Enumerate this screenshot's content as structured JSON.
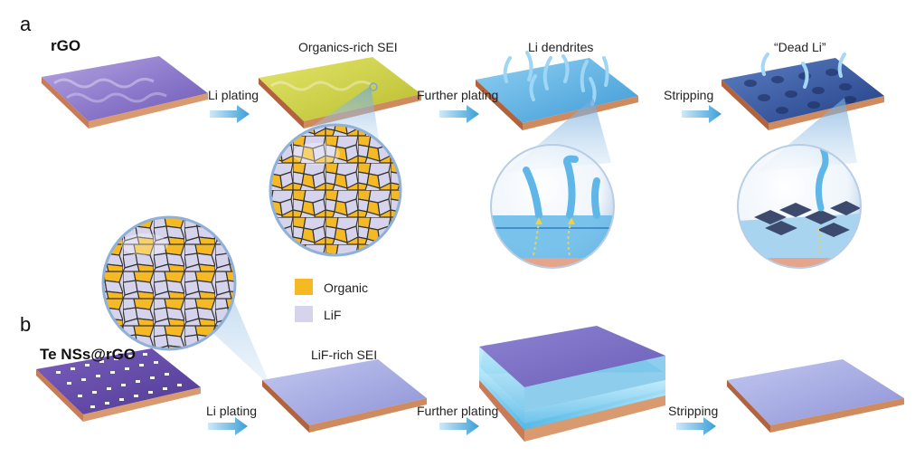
{
  "panel_a": {
    "letter": "a",
    "material": "rGO",
    "stage_labels": [
      "Organics-rich SEI",
      "Li dendrites",
      "“Dead Li”"
    ],
    "steps": [
      "Li plating",
      "Further plating",
      "Stripping"
    ]
  },
  "panel_b": {
    "letter": "b",
    "material": "Te NSs@rGO",
    "stage_labels": [
      "LiF-rich SEI"
    ],
    "steps": [
      "Li plating",
      "Further plating",
      "Stripping"
    ]
  },
  "legend": [
    {
      "label": "Organic",
      "color": "#f5b923"
    },
    {
      "label": "LiF",
      "color": "#d6d3ec"
    }
  ]
}
